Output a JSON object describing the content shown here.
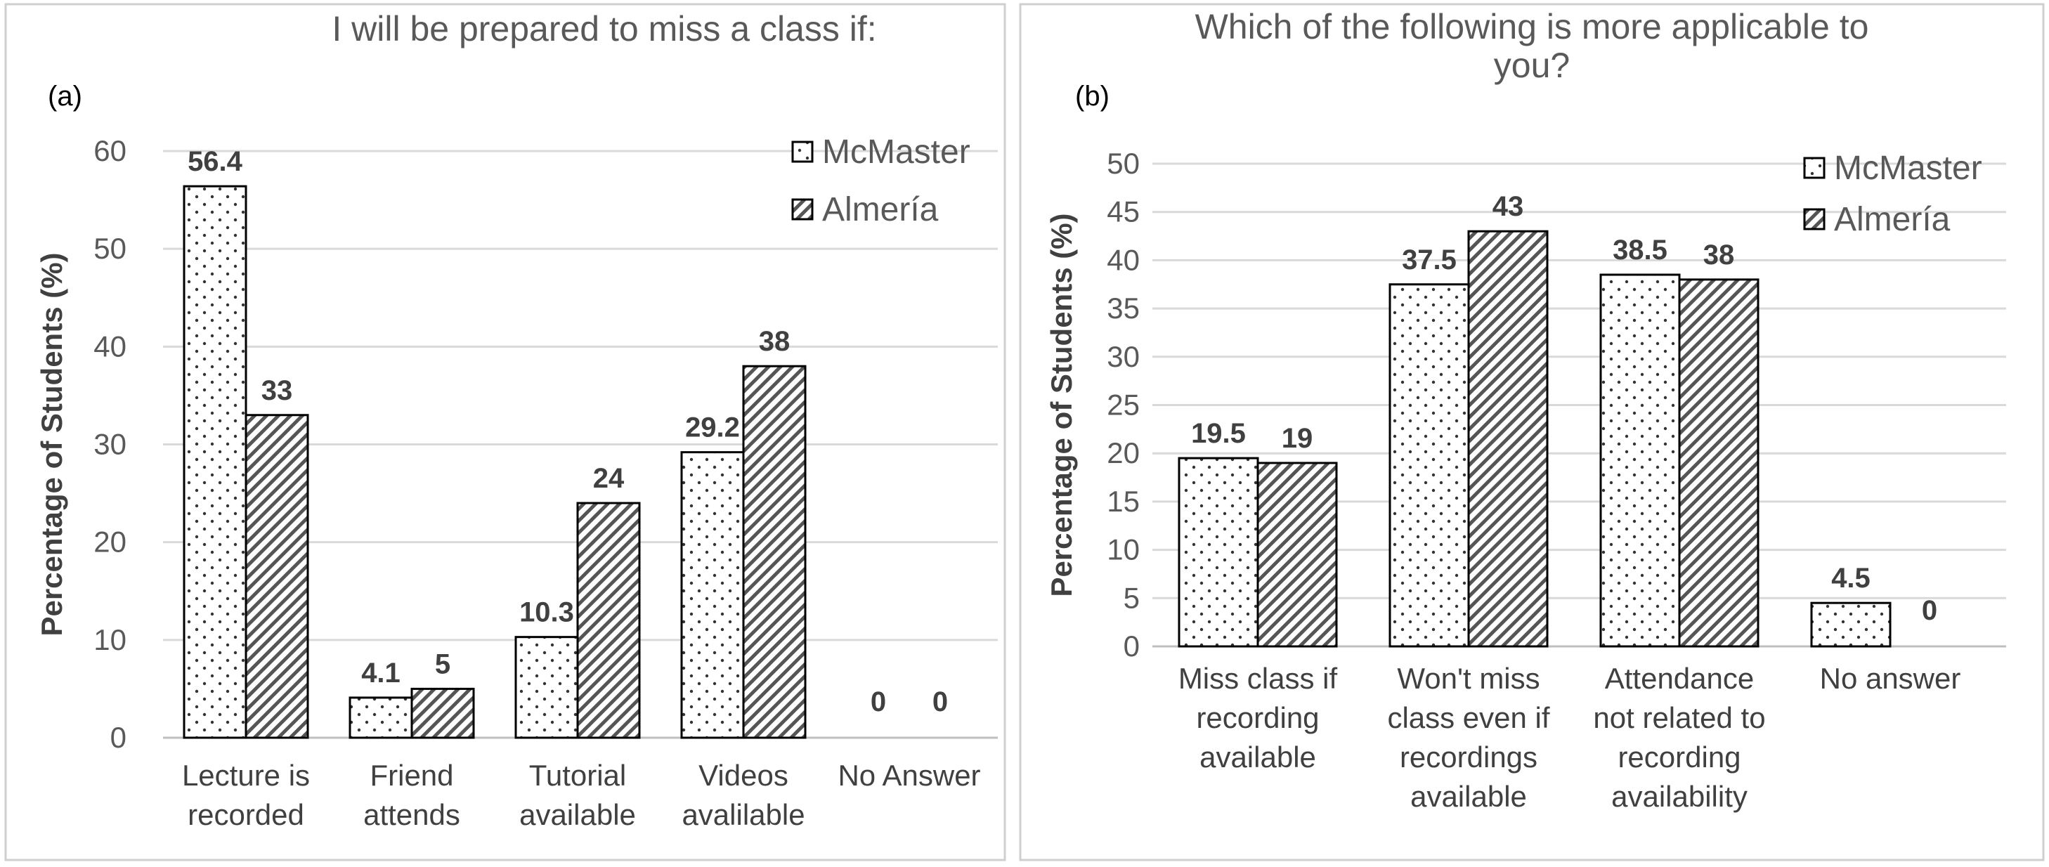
{
  "colors": {
    "mcmaster_fill": "#ffffff",
    "almeria_fill": "#ffffff",
    "bar_stroke": "#000000",
    "grid": "#d9d9d9",
    "text": "#595959"
  },
  "chart_data": [
    {
      "panel_label": "(a)",
      "type": "bar",
      "title": "I will be prepared to miss a class if:",
      "ylabel": "Percentage of Students (%)",
      "xlabel": "",
      "ylim": [
        0,
        60
      ],
      "yticks": [
        0,
        10,
        20,
        30,
        40,
        50,
        60
      ],
      "grid": true,
      "legend_position": "top-right",
      "categories": [
        [
          "Lecture is",
          "recorded"
        ],
        [
          "Friend",
          "attends"
        ],
        [
          "Tutorial",
          "available"
        ],
        [
          "Videos",
          "avalilable"
        ],
        [
          "No Answer"
        ]
      ],
      "series": [
        {
          "name": "McMaster",
          "pattern": "dots",
          "values": [
            56.4,
            4.1,
            10.3,
            29.2,
            0
          ],
          "labels": [
            "56.4",
            "4.1",
            "10.3",
            "29.2",
            "0"
          ]
        },
        {
          "name": "Almería",
          "pattern": "hatch",
          "values": [
            33,
            5,
            24,
            38,
            0
          ],
          "labels": [
            "33",
            "5",
            "24",
            "38",
            "0"
          ]
        }
      ]
    },
    {
      "panel_label": "(b)",
      "type": "bar",
      "title": [
        "Which of the following is more applicable to",
        "you?"
      ],
      "ylabel": "Percentage of Students (%)",
      "xlabel": "",
      "ylim": [
        0,
        50
      ],
      "yticks": [
        0,
        5,
        10,
        15,
        20,
        25,
        30,
        35,
        40,
        45,
        50
      ],
      "grid": true,
      "legend_position": "top-right",
      "categories": [
        [
          "Miss class if",
          "recording",
          "available"
        ],
        [
          "Won't miss",
          "class even if",
          "recordings",
          "available"
        ],
        [
          "Attendance",
          "not related to",
          "recording",
          "availability"
        ],
        [
          "No answer"
        ]
      ],
      "series": [
        {
          "name": "McMaster",
          "pattern": "dots",
          "values": [
            19.5,
            37.5,
            38.5,
            4.5
          ],
          "labels": [
            "19.5",
            "37.5",
            "38.5",
            "4.5"
          ]
        },
        {
          "name": "Almería",
          "pattern": "hatch",
          "values": [
            19,
            43,
            38,
            0
          ],
          "labels": [
            "19",
            "43",
            "38",
            "0"
          ]
        }
      ]
    }
  ]
}
